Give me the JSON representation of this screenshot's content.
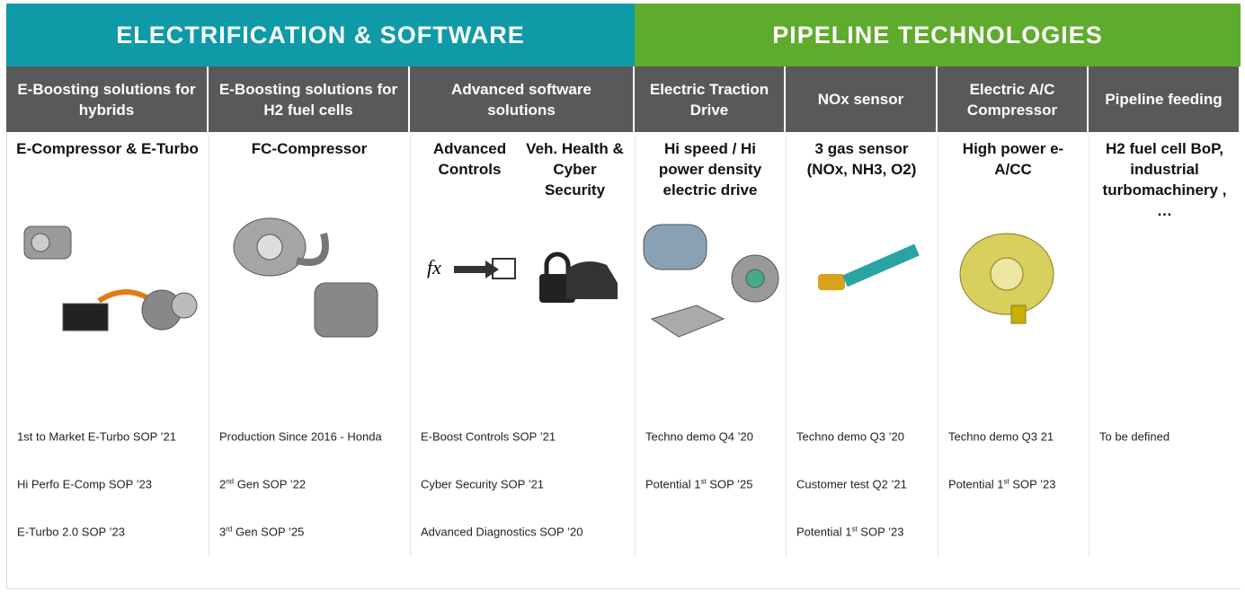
{
  "groups": [
    {
      "title": "ELECTRIFICATION & SOFTWARE"
    },
    {
      "title": "PIPELINE TECHNOLOGIES"
    }
  ],
  "columns": [
    {
      "header": "E-Boosting solutions for hybrids",
      "products": [
        "E-Compressor & E-Turbo"
      ],
      "milestones": [
        "1st to Market E-Turbo SOP ’21",
        "Hi Perfo E-Comp SOP ’23",
        "E-Turbo 2.0 SOP ’23"
      ]
    },
    {
      "header": "E-Boosting solutions for H2 fuel cells",
      "products": [
        "FC-Compressor"
      ],
      "milestones": [
        "Production Since 2016 - Honda",
        {
          "pre": "2",
          "sup": "nd",
          "post": " Gen SOP ’22"
        },
        {
          "pre": "3",
          "sup": "rd",
          "post": " Gen SOP ’25"
        }
      ]
    },
    {
      "header": "Advanced software solutions",
      "products": [
        "Advanced Controls",
        "Veh. Health & Cyber Security"
      ],
      "milestones": [
        "E-Boost Controls SOP ’21",
        "Cyber Security SOP ’21",
        "Advanced Diagnostics SOP ’20"
      ]
    },
    {
      "header": "Electric Traction Drive",
      "products": [
        "Hi speed / Hi power density electric drive"
      ],
      "milestones": [
        "Techno demo Q4 ’20",
        {
          "pre": "Potential 1",
          "sup": "st",
          "post": " SOP ’25"
        }
      ]
    },
    {
      "header": "NOx sensor",
      "products": [
        "3 gas sensor (NOx, NH3, O2)"
      ],
      "milestones": [
        "Techno demo Q3 ’20",
        "Customer test Q2 ’21",
        {
          "pre": "Potential 1",
          "sup": "st",
          "post": " SOP ’23"
        }
      ]
    },
    {
      "header": "Electric A/C Compressor",
      "products": [
        "High power e-A/CC"
      ],
      "milestones": [
        "Techno demo Q3 21",
        {
          "pre": "Potential 1",
          "sup": "st",
          "post": " SOP ’23"
        }
      ]
    },
    {
      "header": "Pipeline feeding",
      "products": [
        "H2 fuel cell BoP, industrial turbomachinery , …"
      ],
      "milestones": [
        "To be defined"
      ]
    }
  ]
}
